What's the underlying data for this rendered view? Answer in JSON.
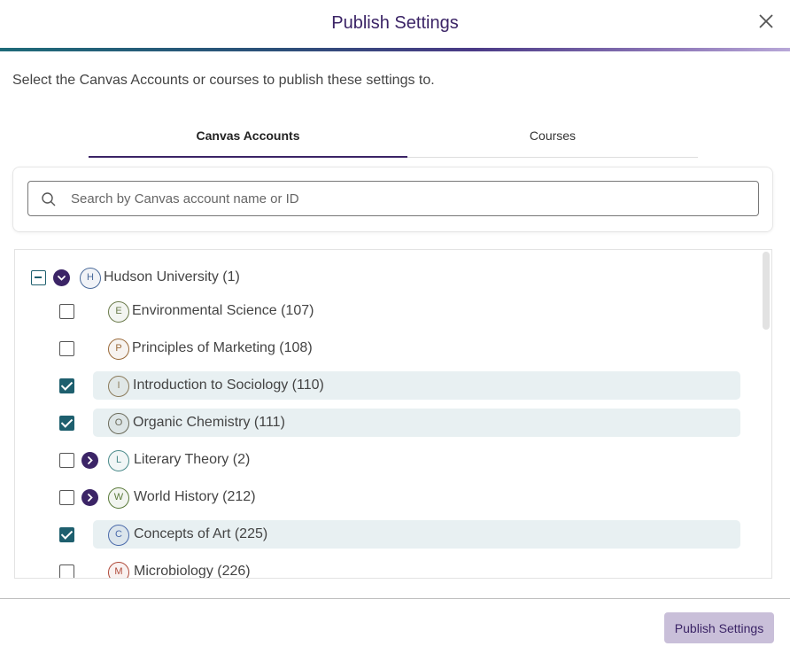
{
  "dialog": {
    "title": "Publish Settings",
    "close_icon": "close-icon",
    "intro": "Select the Canvas Accounts or courses to publish these settings to."
  },
  "tabs": [
    {
      "label": "Canvas Accounts",
      "active": true
    },
    {
      "label": "Courses",
      "active": false
    }
  ],
  "search": {
    "placeholder": "Search by Canvas account name or ID",
    "value": "",
    "icon": "search-icon"
  },
  "tree": {
    "root": {
      "label": "Hudson University (1)",
      "initial": "H",
      "state": "partial",
      "expanded": true,
      "avatar_color": "#4a6a9a"
    },
    "children": [
      {
        "label": "Environmental Science (107)",
        "initial": "E",
        "checked": false,
        "expandable": false,
        "avatar_color": "#6a7a4a"
      },
      {
        "label": "Principles of Marketing (108)",
        "initial": "P",
        "checked": false,
        "expandable": false,
        "avatar_color": "#9a6a3a"
      },
      {
        "label": "Introduction to Sociology (110)",
        "initial": "I",
        "checked": true,
        "expandable": false,
        "avatar_color": "#8a7a5a"
      },
      {
        "label": "Organic Chemistry (111)",
        "initial": "O",
        "checked": true,
        "expandable": false,
        "avatar_color": "#6a6a5a"
      },
      {
        "label": "Literary Theory (2)",
        "initial": "L",
        "checked": false,
        "expandable": true,
        "avatar_color": "#4a8a8a"
      },
      {
        "label": "World History (212)",
        "initial": "W",
        "checked": false,
        "expandable": true,
        "avatar_color": "#5a7a3a"
      },
      {
        "label": "Concepts of Art (225)",
        "initial": "C",
        "checked": true,
        "expandable": false,
        "avatar_color": "#4a6aaa"
      },
      {
        "label": "Microbiology (226)",
        "initial": "M",
        "checked": false,
        "expandable": false,
        "avatar_color": "#b04a3a"
      }
    ]
  },
  "footer": {
    "publish_label": "Publish Settings"
  },
  "colors": {
    "brand": "#3b2466",
    "checkbox": "#1e5f6e",
    "highlight": "#e8f0f2",
    "button_disabled": "#c9bfd9"
  }
}
